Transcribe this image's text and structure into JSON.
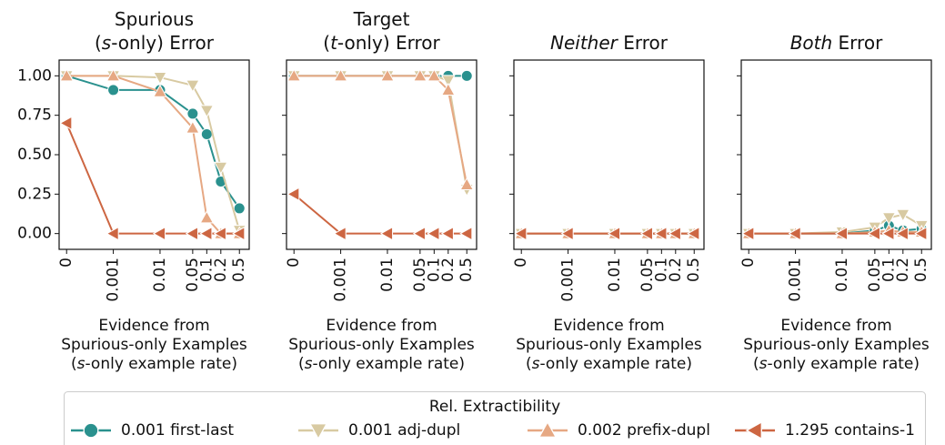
{
  "chart_data": [
    {
      "type": "line",
      "title": [
        [
          "Spurious"
        ],
        [
          "(",
          "s",
          "-only) Error"
        ]
      ],
      "x": [
        0,
        0.001,
        0.01,
        0.05,
        0.1,
        0.2,
        0.5
      ],
      "xscale": "symlog",
      "linthresh": 0.001,
      "xlim": [
        -0.00016,
        0.81
      ],
      "xticks": [
        0,
        0.001,
        0.01,
        0.05,
        0.1,
        0.2,
        0.5
      ],
      "ylim": [
        -0.1,
        1.1
      ],
      "yticks": [
        {
          "value": 0,
          "label": "0.00"
        },
        {
          "value": 0.25,
          "label": "0.25"
        },
        {
          "value": 0.5,
          "label": "0.50"
        },
        {
          "value": 0.75,
          "label": "0.75"
        },
        {
          "value": 1,
          "label": "1.00"
        }
      ],
      "xlabel": [
        [
          "Evidence from"
        ],
        [
          "Spurious-only Examples"
        ],
        [
          "(",
          "s",
          "-only example rate)"
        ]
      ],
      "series": [
        {
          "name": "0.001 first-last",
          "color": "#2a918e",
          "marker": "circle",
          "values": [
            1.0,
            0.91,
            0.91,
            0.76,
            0.63,
            0.33,
            0.16
          ]
        },
        {
          "name": "0.001 adj-dupl",
          "color": "#d8caa2",
          "marker": "down",
          "values": [
            1.0,
            1.0,
            0.99,
            0.94,
            0.78,
            0.42,
            0.02
          ]
        },
        {
          "name": "0.002 prefix-dupl",
          "color": "#e6a883",
          "marker": "up",
          "values": [
            1.0,
            1.0,
            0.9,
            0.67,
            0.1,
            0.0,
            0.0
          ]
        },
        {
          "name": "1.295 contains-1",
          "color": "#cd6642",
          "marker": "left",
          "values": [
            0.7,
            0,
            0,
            0,
            0,
            0,
            0
          ]
        }
      ]
    },
    {
      "type": "line",
      "title": [
        [
          "Target"
        ],
        [
          "(",
          "t",
          "-only) Error"
        ]
      ],
      "x": [
        0,
        0.001,
        0.01,
        0.05,
        0.1,
        0.2,
        0.5
      ],
      "xscale": "symlog",
      "linthresh": 0.001,
      "xlim": [
        -0.00016,
        0.81
      ],
      "xticks": [
        0,
        0.001,
        0.01,
        0.05,
        0.1,
        0.2,
        0.5
      ],
      "ylim": [
        -0.1,
        1.1
      ],
      "yticks": [
        0,
        0.25,
        0.5,
        0.75,
        1
      ],
      "xlabel": [
        [
          "Evidence from"
        ],
        [
          "Spurious-only Examples"
        ],
        [
          "(",
          "s",
          "-only example rate)"
        ]
      ],
      "series": [
        {
          "name": "0.001 first-last",
          "color": "#2a918e",
          "marker": "circle",
          "values": [
            1,
            1,
            1,
            1,
            1,
            1,
            1
          ]
        },
        {
          "name": "0.001 adj-dupl",
          "color": "#d8caa2",
          "marker": "down",
          "values": [
            1,
            1,
            1,
            1,
            1,
            0.97,
            0.28
          ]
        },
        {
          "name": "0.002 prefix-dupl",
          "color": "#e6a883",
          "marker": "up",
          "values": [
            1,
            1,
            1,
            1,
            1,
            0.91,
            0.31
          ]
        },
        {
          "name": "1.295 contains-1",
          "color": "#cd6642",
          "marker": "left",
          "values": [
            0.25,
            0,
            0,
            0,
            0,
            0,
            0
          ]
        }
      ]
    },
    {
      "type": "line",
      "title": [
        [
          "",
          "Neither",
          " Error"
        ]
      ],
      "x": [
        0,
        0.001,
        0.01,
        0.05,
        0.1,
        0.2,
        0.5
      ],
      "xscale": "symlog",
      "linthresh": 0.001,
      "xlim": [
        -0.00016,
        0.81
      ],
      "xticks": [
        0,
        0.001,
        0.01,
        0.05,
        0.1,
        0.2,
        0.5
      ],
      "ylim": [
        -0.1,
        1.1
      ],
      "yticks": [
        0,
        0.25,
        0.5,
        0.75,
        1
      ],
      "xlabel": [
        [
          "Evidence from"
        ],
        [
          "Spurious-only Examples"
        ],
        [
          "(",
          "s",
          "-only example rate)"
        ]
      ],
      "series": [
        {
          "name": "0.001 first-last",
          "color": "#2a918e",
          "marker": "circle",
          "values": [
            0,
            0,
            0,
            0,
            0,
            0,
            0
          ]
        },
        {
          "name": "0.001 adj-dupl",
          "color": "#d8caa2",
          "marker": "down",
          "values": [
            0,
            0,
            0,
            0,
            0,
            0,
            0
          ]
        },
        {
          "name": "0.002 prefix-dupl",
          "color": "#e6a883",
          "marker": "up",
          "values": [
            0,
            0,
            0,
            0,
            0,
            0,
            0
          ]
        },
        {
          "name": "1.295 contains-1",
          "color": "#cd6642",
          "marker": "left",
          "values": [
            0,
            0,
            0,
            0,
            0,
            0,
            0
          ]
        }
      ]
    },
    {
      "type": "line",
      "title": [
        [
          "",
          "Both",
          " Error"
        ]
      ],
      "x": [
        0,
        0.001,
        0.01,
        0.05,
        0.1,
        0.2,
        0.5
      ],
      "xscale": "symlog",
      "linthresh": 0.001,
      "xlim": [
        -0.00016,
        0.81
      ],
      "xticks": [
        0,
        0.001,
        0.01,
        0.05,
        0.1,
        0.2,
        0.5
      ],
      "ylim": [
        -0.1,
        1.1
      ],
      "yticks": [
        0,
        0.25,
        0.5,
        0.75,
        1
      ],
      "xlabel": [
        [
          "Evidence from"
        ],
        [
          "Spurious-only Examples"
        ],
        [
          "(",
          "s",
          "-only example rate)"
        ]
      ],
      "series": [
        {
          "name": "0.001 first-last",
          "color": "#2a918e",
          "marker": "circle",
          "values": [
            0,
            0,
            0,
            0.02,
            0.05,
            0.02,
            0.03
          ]
        },
        {
          "name": "0.001 adj-dupl",
          "color": "#d8caa2",
          "marker": "down",
          "values": [
            0,
            0,
            0.01,
            0.04,
            0.1,
            0.12,
            0.05
          ]
        },
        {
          "name": "0.002 prefix-dupl",
          "color": "#e6a883",
          "marker": "up",
          "values": [
            0,
            0,
            0,
            0.01,
            0.02,
            0.01,
            0.01
          ]
        },
        {
          "name": "1.295 contains-1",
          "color": "#cd6642",
          "marker": "left",
          "values": [
            0,
            0,
            0,
            0,
            0,
            0,
            0
          ]
        }
      ]
    }
  ],
  "legend": {
    "title": "Rel. Extractibility",
    "position": "lower center"
  }
}
